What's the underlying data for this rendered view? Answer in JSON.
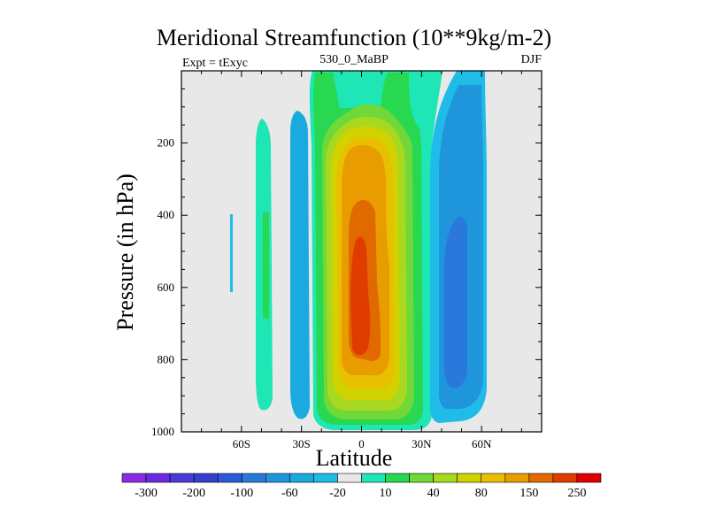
{
  "chart_data": {
    "type": "heatmap",
    "title": "Meridional Streamfunction (10**9kg/m-2)",
    "subtitle_left": "Expt = tExyc",
    "subtitle_center": "530_0_MaBP",
    "subtitle_right": "DJF",
    "xlabel": "Latitude",
    "ylabel": "Pressure (in hPa)",
    "xlim": [
      -90,
      90
    ],
    "ylim": [
      1000,
      0
    ],
    "x_ticks": [
      {
        "value": -60,
        "label": "60S"
      },
      {
        "value": -30,
        "label": "30S"
      },
      {
        "value": 0,
        "label": "0"
      },
      {
        "value": 30,
        "label": "30N"
      },
      {
        "value": 60,
        "label": "60N"
      }
    ],
    "y_ticks": [
      {
        "value": 200,
        "label": "200"
      },
      {
        "value": 400,
        "label": "400"
      },
      {
        "value": 600,
        "label": "600"
      },
      {
        "value": 800,
        "label": "800"
      },
      {
        "value": 1000,
        "label": "1000"
      }
    ],
    "colorbar": {
      "levels": [
        -300,
        -250,
        -200,
        -150,
        -100,
        -80,
        -60,
        -40,
        -20,
        -10,
        10,
        20,
        40,
        60,
        80,
        100,
        150,
        200,
        250
      ],
      "colors": [
        "#8a2be2",
        "#6a2be0",
        "#4b3ad8",
        "#3440cc",
        "#2b5ad6",
        "#2a78dc",
        "#1f95dc",
        "#1aaae0",
        "#20bce8",
        "#e8e8e8",
        "#1ee6b4",
        "#28d850",
        "#70d838",
        "#a8d820",
        "#d2d200",
        "#e8c000",
        "#e89c00",
        "#e06a00",
        "#e03c00",
        "#e00000"
      ],
      "labels": [
        {
          "value": -300,
          "label": "-300"
        },
        {
          "value": -200,
          "label": "-200"
        },
        {
          "value": -100,
          "label": "-100"
        },
        {
          "value": -60,
          "label": "-60"
        },
        {
          "value": -20,
          "label": "-20"
        },
        {
          "value": 10,
          "label": "10"
        },
        {
          "value": 40,
          "label": "40"
        },
        {
          "value": 80,
          "label": "80"
        },
        {
          "value": 150,
          "label": "150"
        },
        {
          "value": 250,
          "label": "250"
        }
      ]
    },
    "features": [
      {
        "name": "hadley-cell-main",
        "sign": "positive",
        "lat_center": -1,
        "lat_width": 30,
        "p_center": 580,
        "peak": 275
      },
      {
        "name": "cell-southern-midlat-1",
        "sign": "positive",
        "lat_center": -45,
        "lat_width": 7,
        "p_center": 540,
        "peak": 15
      },
      {
        "name": "cell-southern-midlat-2",
        "sign": "negative",
        "lat_center": -30,
        "lat_width": 5,
        "p_center": 560,
        "peak": -15
      },
      {
        "name": "cell-southern-polar",
        "sign": "negative",
        "lat_center": -64,
        "lat_width": 1,
        "p_center": 500,
        "peak": -15
      },
      {
        "name": "cell-northern-midlat",
        "sign": "negative",
        "lat_center": 50,
        "lat_width": 14,
        "p_center": 600,
        "peak": -35
      }
    ]
  }
}
